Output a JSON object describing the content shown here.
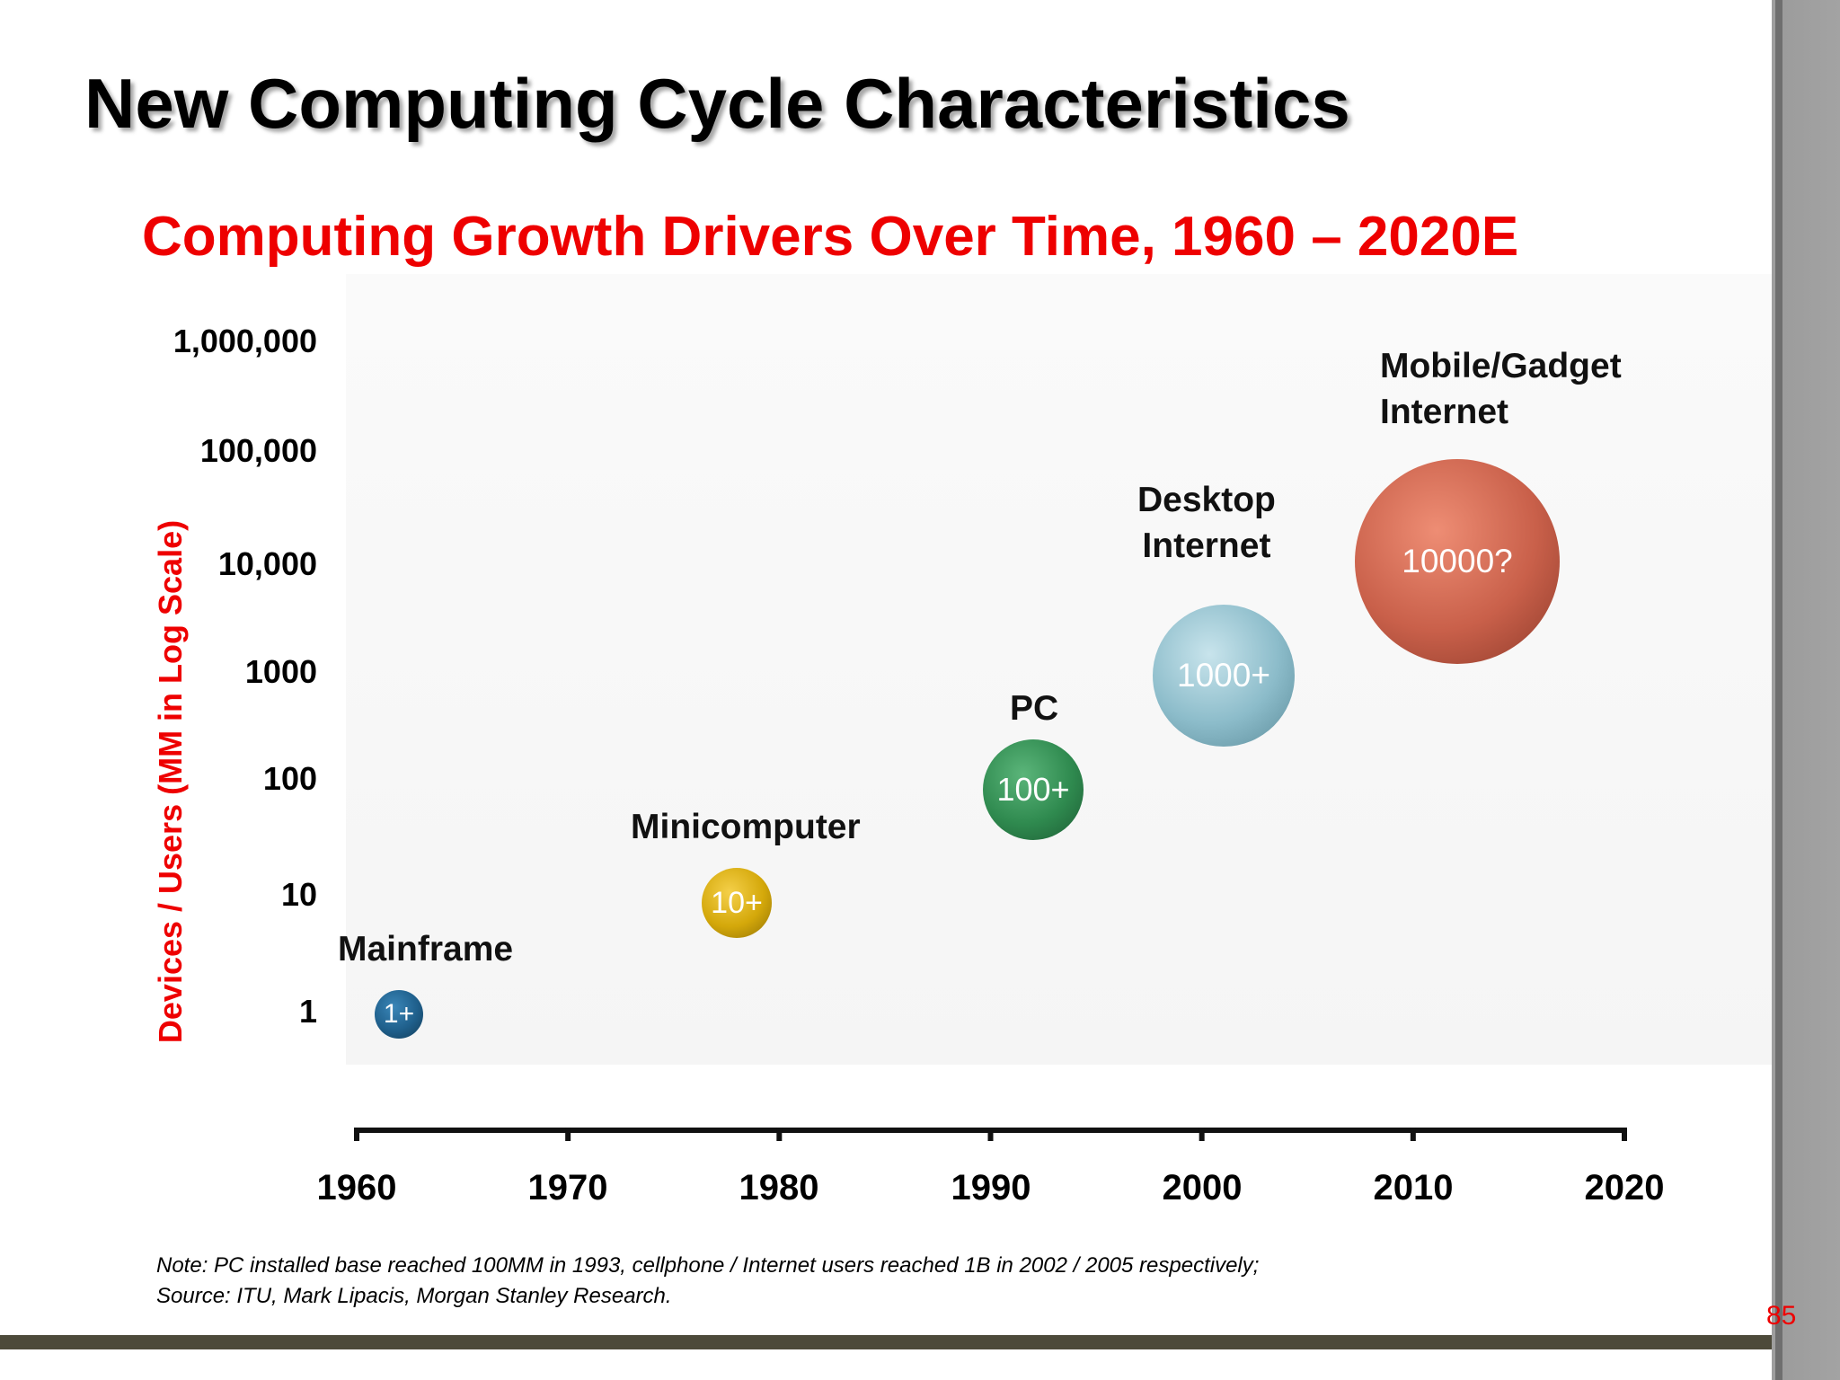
{
  "slide": {
    "title": "New Computing Cycle Characteristics",
    "page_number": "85",
    "note_line1": "Note: PC installed base reached 100MM in 1993, cellphone / Internet users reached 1B in 2002 / 2005 respectively;",
    "note_line2": "Source: ITU, Mark Lipacis, Morgan Stanley Research."
  },
  "chart_data": {
    "type": "scatter",
    "title": "Computing Growth Drivers Over Time, 1960 – 2020E",
    "xlabel": "",
    "ylabel": "Devices / Users (MM in Log Scale)",
    "yscale": "log",
    "xlim": [
      1960,
      2020
    ],
    "ylim": [
      1,
      1000000
    ],
    "x_ticks": [
      "1960",
      "1970",
      "1980",
      "1990",
      "2000",
      "2010",
      "2020"
    ],
    "y_ticks": [
      {
        "value": 1,
        "label": "1"
      },
      {
        "value": 10,
        "label": "10"
      },
      {
        "value": 100,
        "label": "100"
      },
      {
        "value": 1000,
        "label": "1000"
      },
      {
        "value": 10000,
        "label": "10,000"
      },
      {
        "value": 100000,
        "label": "100,000"
      },
      {
        "value": 1000000,
        "label": "1,000,000"
      }
    ],
    "grid": false,
    "points": [
      {
        "category": "Mainframe",
        "x": 1962,
        "y": 1,
        "label": "1+",
        "color": "#1f5f8b"
      },
      {
        "category": "Minicomputer",
        "x": 1978,
        "y": 10,
        "label": "10+",
        "color": "#d4a80a"
      },
      {
        "category": "PC",
        "x": 1992,
        "y": 100,
        "label": "100+",
        "color": "#2f8a4f"
      },
      {
        "category": "Desktop\nInternet",
        "x": 2001,
        "y": 1000,
        "label": "1000+",
        "color": "#8cbcca"
      },
      {
        "category": "Mobile/Gadget\nInternet",
        "x": 2012,
        "y": 10000,
        "label": "10000?",
        "color": "#c9604a"
      }
    ]
  }
}
